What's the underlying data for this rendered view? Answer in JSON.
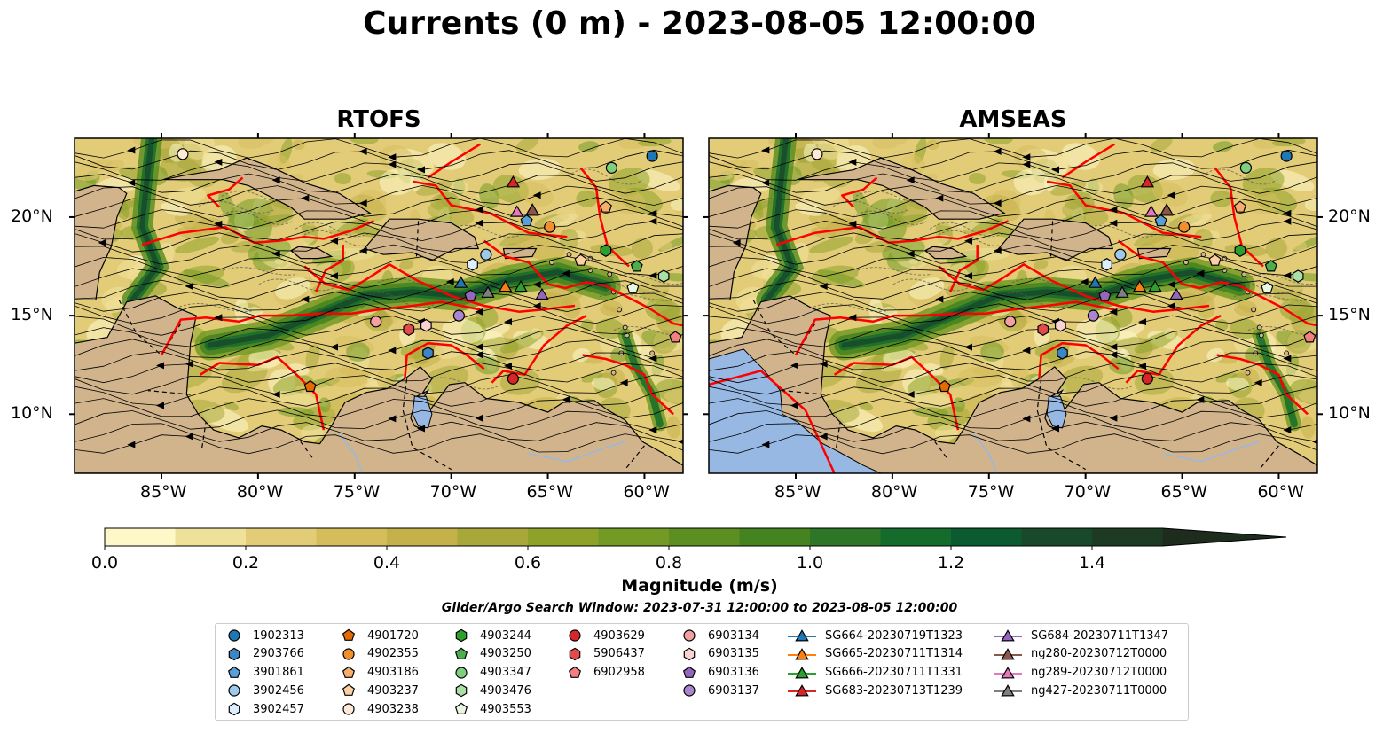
{
  "title": "Currents (0 m) - 2023-08-05 12:00:00",
  "panels": [
    {
      "title": "RTOFS",
      "show_pacific": false
    },
    {
      "title": "AMSEAS",
      "show_pacific": true
    }
  ],
  "map": {
    "lon_range": [
      -89.5,
      -58.0
    ],
    "lat_range": [
      7.0,
      24.0
    ],
    "lon_ticks": [
      {
        "value": -85,
        "label": "85°W"
      },
      {
        "value": -80,
        "label": "80°W"
      },
      {
        "value": -75,
        "label": "75°W"
      },
      {
        "value": -70,
        "label": "70°W"
      },
      {
        "value": -65,
        "label": "65°W"
      },
      {
        "value": -60,
        "label": "60°W"
      }
    ],
    "lat_ticks": [
      {
        "value": 20,
        "label": "20°N"
      },
      {
        "value": 15,
        "label": "15°N"
      },
      {
        "value": 10,
        "label": "10°N"
      }
    ],
    "contour_label": "-1000",
    "colors": {
      "land": "#d2b48c",
      "ocean_deep": "#98b8e4",
      "eez": "#ff0000",
      "border": "#000000",
      "river": "#98b8e4"
    }
  },
  "colorbar": {
    "label": "Magnitude (m/s)",
    "min": 0.0,
    "max": 1.6,
    "step": 0.1,
    "extend": "max",
    "ticks": [
      "0.0",
      "0.2",
      "0.4",
      "0.6",
      "0.8",
      "1.0",
      "1.2",
      "1.4"
    ],
    "colors": [
      "#fef8c8",
      "#f0e19a",
      "#e3cc78",
      "#d6bd5c",
      "#c4b14a",
      "#a8a73a",
      "#8ea22a",
      "#739a24",
      "#5c8e22",
      "#448320",
      "#2d7628",
      "#156b2c",
      "#0c5a30",
      "#17492a",
      "#1d3b23",
      "#1d2c1c"
    ]
  },
  "search_window": "Glider/Argo Search Window: 2023-07-31 12:00:00 to 2023-08-05 12:00:00",
  "platforms": [
    {
      "name": "1902313",
      "marker": "circle",
      "color": "#1f77b4",
      "lon": -59.6,
      "lat": 23.1
    },
    {
      "name": "2903766",
      "marker": "hexagon",
      "color": "#3b86c4",
      "lon": -71.2,
      "lat": 13.1
    },
    {
      "name": "3901861",
      "marker": "pentagon",
      "color": "#5aa0d8",
      "lon": -66.1,
      "lat": 19.8
    },
    {
      "name": "3902456",
      "marker": "circle",
      "color": "#9ecae9",
      "lon": -68.2,
      "lat": 18.1
    },
    {
      "name": "3902457",
      "marker": "hexagon",
      "color": "#ddeeff",
      "lon": -68.9,
      "lat": 17.6
    },
    {
      "name": "4901720",
      "marker": "pentagon",
      "color": "#e66a00",
      "lon": -77.3,
      "lat": 11.4
    },
    {
      "name": "4902355",
      "marker": "circle",
      "color": "#f28e2b",
      "lon": -64.9,
      "lat": 19.5
    },
    {
      "name": "4903186",
      "marker": "pentagon",
      "color": "#f8ae6b",
      "lon": -62.0,
      "lat": 20.5
    },
    {
      "name": "4903237",
      "marker": "pentagon",
      "color": "#fcd0a4",
      "lon": -63.3,
      "lat": 17.8
    },
    {
      "name": "4903238",
      "marker": "circle",
      "color": "#feead6",
      "lon": -83.9,
      "lat": 23.2
    },
    {
      "name": "4903244",
      "marker": "hexagon",
      "color": "#2ca02c",
      "lon": -62.0,
      "lat": 18.3
    },
    {
      "name": "4903250",
      "marker": "pentagon",
      "color": "#4caf4c",
      "lon": -60.4,
      "lat": 17.5
    },
    {
      "name": "4903347",
      "marker": "circle",
      "color": "#7fcf7f",
      "lon": -61.7,
      "lat": 22.5
    },
    {
      "name": "4903476",
      "marker": "hexagon",
      "color": "#a8e0a8",
      "lon": -59.0,
      "lat": 17.0
    },
    {
      "name": "4903553",
      "marker": "pentagon",
      "color": "#e8f8e0",
      "lon": -60.6,
      "lat": 16.4
    },
    {
      "name": "4903629",
      "marker": "circle",
      "color": "#d62728",
      "lon": -66.8,
      "lat": 11.8
    },
    {
      "name": "5906437",
      "marker": "hexagon",
      "color": "#e34a4a",
      "lon": -72.2,
      "lat": 14.3
    },
    {
      "name": "6902958",
      "marker": "pentagon",
      "color": "#f28080",
      "lon": -58.4,
      "lat": 13.9
    },
    {
      "name": "6903134",
      "marker": "circle",
      "color": "#f4a0a0",
      "lon": -73.9,
      "lat": 14.7
    },
    {
      "name": "6903135",
      "marker": "hexagon",
      "color": "#fad2d2",
      "lon": -71.3,
      "lat": 14.5
    },
    {
      "name": "6903136",
      "marker": "pentagon",
      "color": "#9467bd",
      "lon": -69.0,
      "lat": 16.0
    },
    {
      "name": "6903137",
      "marker": "circle",
      "color": "#ab86cf",
      "lon": -69.6,
      "lat": 15.0
    }
  ],
  "gliders": [
    {
      "name": "SG664-20230719T1323",
      "color": "#1f77b4",
      "lon": -69.5,
      "lat": 16.7
    },
    {
      "name": "SG665-20230711T1314",
      "color": "#ff7f0e",
      "lon": -67.2,
      "lat": 16.5
    },
    {
      "name": "SG666-20230711T1331",
      "color": "#2ca02c",
      "lon": -66.4,
      "lat": 16.5
    },
    {
      "name": "SG683-20230713T1239",
      "color": "#d62728",
      "lon": -66.8,
      "lat": 21.8
    },
    {
      "name": "SG684-20230711T1347",
      "color": "#9467bd",
      "lon": -65.3,
      "lat": 16.1
    },
    {
      "name": "ng280-20230712T0000",
      "color": "#8c564b",
      "lon": -65.8,
      "lat": 20.4
    },
    {
      "name": "ng289-20230712T0000",
      "color": "#e377c2",
      "lon": -66.6,
      "lat": 20.3
    },
    {
      "name": "ng427-20230711T0000",
      "color": "#7f7f7f",
      "lon": -68.1,
      "lat": 16.2
    }
  ]
}
